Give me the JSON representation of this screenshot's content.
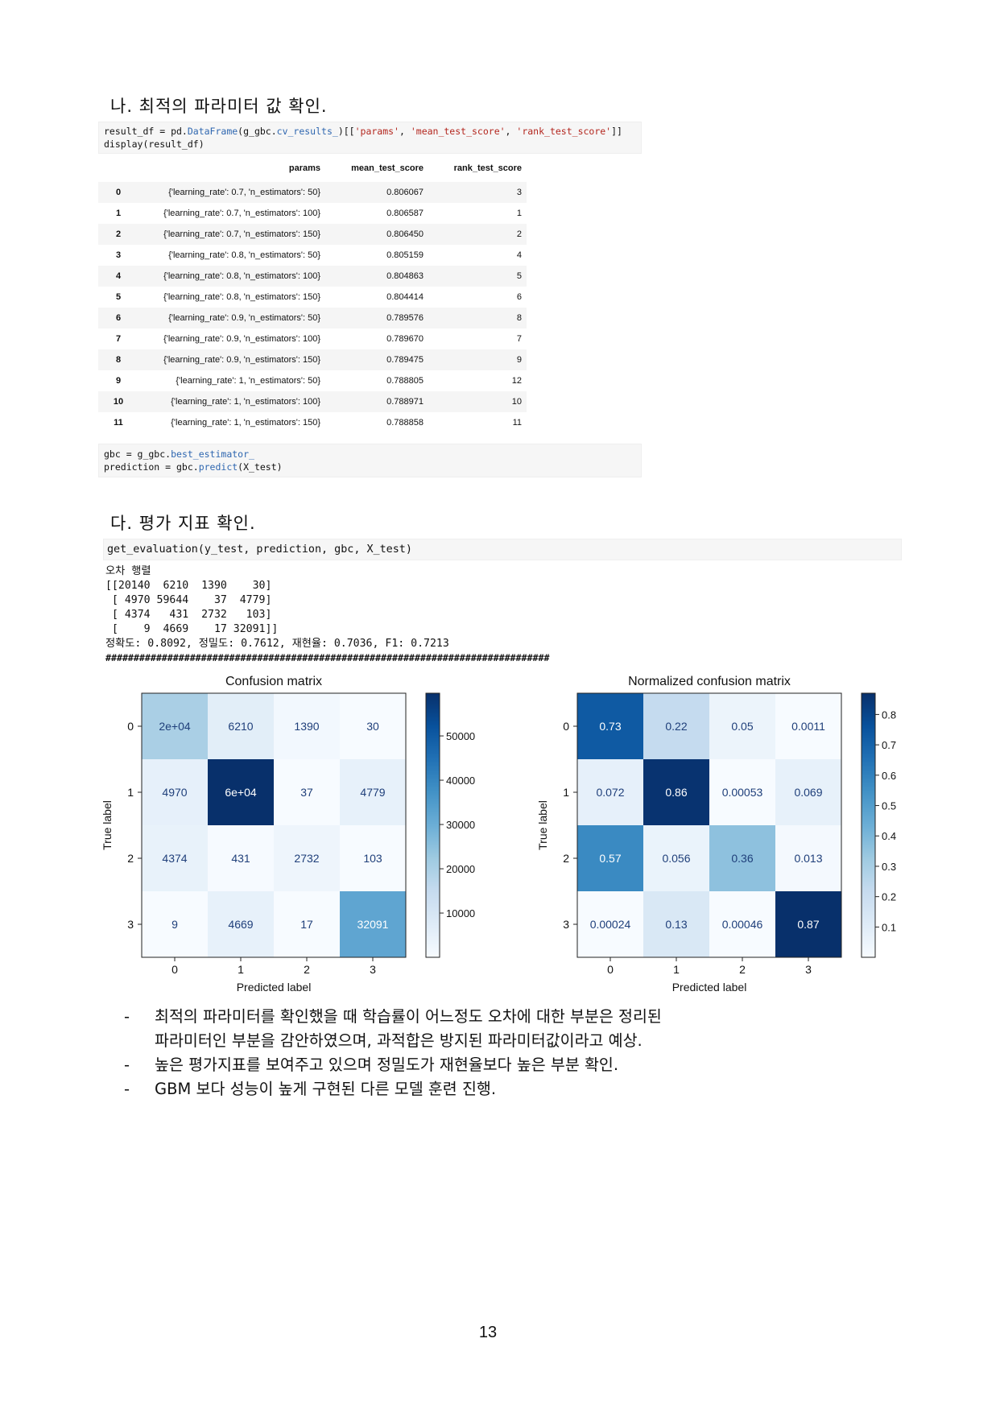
{
  "section_na": {
    "title": "나. 최적의 파라미터 값 확인."
  },
  "code1": {
    "line1_a": "result_df = pd.",
    "line1_b": "DataFrame",
    "line1_c": "(g_gbc.",
    "line1_d": "cv_results_",
    "line1_e": ")[[",
    "line1_f": "'params'",
    "line1_g": ", ",
    "line1_h": "'mean_test_score'",
    "line1_i": ", ",
    "line1_j": "'rank_test_score'",
    "line1_k": "]]",
    "line2": "display(result_df)"
  },
  "table": {
    "headers": [
      "",
      "params",
      "mean_test_score",
      "rank_test_score"
    ],
    "rows": [
      [
        "0",
        "{'learning_rate': 0.7, 'n_estimators': 50}",
        "0.806067",
        "3"
      ],
      [
        "1",
        "{'learning_rate': 0.7, 'n_estimators': 100}",
        "0.806587",
        "1"
      ],
      [
        "2",
        "{'learning_rate': 0.7, 'n_estimators': 150}",
        "0.806450",
        "2"
      ],
      [
        "3",
        "{'learning_rate': 0.8, 'n_estimators': 50}",
        "0.805159",
        "4"
      ],
      [
        "4",
        "{'learning_rate': 0.8, 'n_estimators': 100}",
        "0.804863",
        "5"
      ],
      [
        "5",
        "{'learning_rate': 0.8, 'n_estimators': 150}",
        "0.804414",
        "6"
      ],
      [
        "6",
        "{'learning_rate': 0.9, 'n_estimators': 50}",
        "0.789576",
        "8"
      ],
      [
        "7",
        "{'learning_rate': 0.9, 'n_estimators': 100}",
        "0.789670",
        "7"
      ],
      [
        "8",
        "{'learning_rate': 0.9, 'n_estimators': 150}",
        "0.789475",
        "9"
      ],
      [
        "9",
        "{'learning_rate': 1, 'n_estimators': 50}",
        "0.788805",
        "12"
      ],
      [
        "10",
        "{'learning_rate': 1, 'n_estimators': 100}",
        "0.788971",
        "10"
      ],
      [
        "11",
        "{'learning_rate': 1, 'n_estimators': 150}",
        "0.788858",
        "11"
      ]
    ]
  },
  "code2": {
    "line1_a": "gbc = g_gbc.",
    "line1_b": "best_estimator_",
    "line2_a": "prediction = gbc.",
    "line2_b": "predict",
    "line2_c": "(X_test)"
  },
  "section_da": {
    "title": "다. 평가 지표 확인."
  },
  "code3": {
    "line1": "get_evaluation(y_test, prediction, gbc, X_test)"
  },
  "output": {
    "lines": [
      "오차 행렬",
      "[[20140  6210  1390    30]",
      " [ 4970 59644    37  4779]",
      " [ 4374   431  2732   103]",
      " [    9  4669    17 32091]]",
      "정확도: 0.8092, 정밀도: 0.7612, 재현율: 0.7036, F1: 0.7213",
      "###############################################################################"
    ]
  },
  "chart_data": [
    {
      "type": "heatmap",
      "title": "Confusion matrix",
      "xlabel": "Predicted label",
      "ylabel": "True label",
      "x_ticks": [
        "0",
        "1",
        "2",
        "3"
      ],
      "y_ticks": [
        "0",
        "1",
        "2",
        "3"
      ],
      "values": [
        [
          20140,
          6210,
          1390,
          30
        ],
        [
          4970,
          59644,
          37,
          4779
        ],
        [
          4374,
          431,
          2732,
          103
        ],
        [
          9,
          4669,
          17,
          32091
        ]
      ],
      "labels": [
        [
          "2e+04",
          "6210",
          "1390",
          "30"
        ],
        [
          "4970",
          "6e+04",
          "37",
          "4779"
        ],
        [
          "4374",
          "431",
          "2732",
          "103"
        ],
        [
          "9",
          "4669",
          "17",
          "32091"
        ]
      ],
      "colorbar_ticks": [
        "10000",
        "20000",
        "30000",
        "40000",
        "50000"
      ],
      "colorbar_tick_values": [
        10000,
        20000,
        30000,
        40000,
        50000
      ],
      "vmin": 9,
      "vmax": 59644,
      "colormap": "Blues",
      "grid": false
    },
    {
      "type": "heatmap",
      "title": "Normalized confusion matrix",
      "xlabel": "Predicted label",
      "ylabel": "True label",
      "x_ticks": [
        "0",
        "1",
        "2",
        "3"
      ],
      "y_ticks": [
        "0",
        "1",
        "2",
        "3"
      ],
      "values": [
        [
          0.73,
          0.22,
          0.05,
          0.0011
        ],
        [
          0.072,
          0.86,
          0.00053,
          0.069
        ],
        [
          0.57,
          0.056,
          0.36,
          0.013
        ],
        [
          0.00024,
          0.13,
          0.00046,
          0.87
        ]
      ],
      "labels": [
        [
          "0.73",
          "0.22",
          "0.05",
          "0.0011"
        ],
        [
          "0.072",
          "0.86",
          "0.00053",
          "0.069"
        ],
        [
          "0.57",
          "0.056",
          "0.36",
          "0.013"
        ],
        [
          "0.00024",
          "0.13",
          "0.00046",
          "0.87"
        ]
      ],
      "colorbar_ticks": [
        "0.1",
        "0.2",
        "0.3",
        "0.4",
        "0.5",
        "0.6",
        "0.7",
        "0.8"
      ],
      "colorbar_tick_values": [
        0.1,
        0.2,
        0.3,
        0.4,
        0.5,
        0.6,
        0.7,
        0.8
      ],
      "vmin": 0.00024,
      "vmax": 0.87,
      "colormap": "Blues",
      "grid": false
    }
  ],
  "bullets": [
    {
      "dash": "-",
      "lines": [
        "최적의 파라미터를 확인했을 때 학습률이 어느정도 오차에 대한 부분은 정리된",
        "파라미터인 부분을 감안하였으며, 과적합은 방지된 파라미터값이라고 예상."
      ]
    },
    {
      "dash": "-",
      "lines": [
        "높은 평가지표를 보여주고 있으며 정밀도가 재현율보다 높은 부분 확인."
      ]
    },
    {
      "dash": "-",
      "lines": [
        "GBM 보다 성능이 높게 구현된 다른 모델 훈련 진행."
      ]
    }
  ],
  "page": {
    "number": "13"
  }
}
